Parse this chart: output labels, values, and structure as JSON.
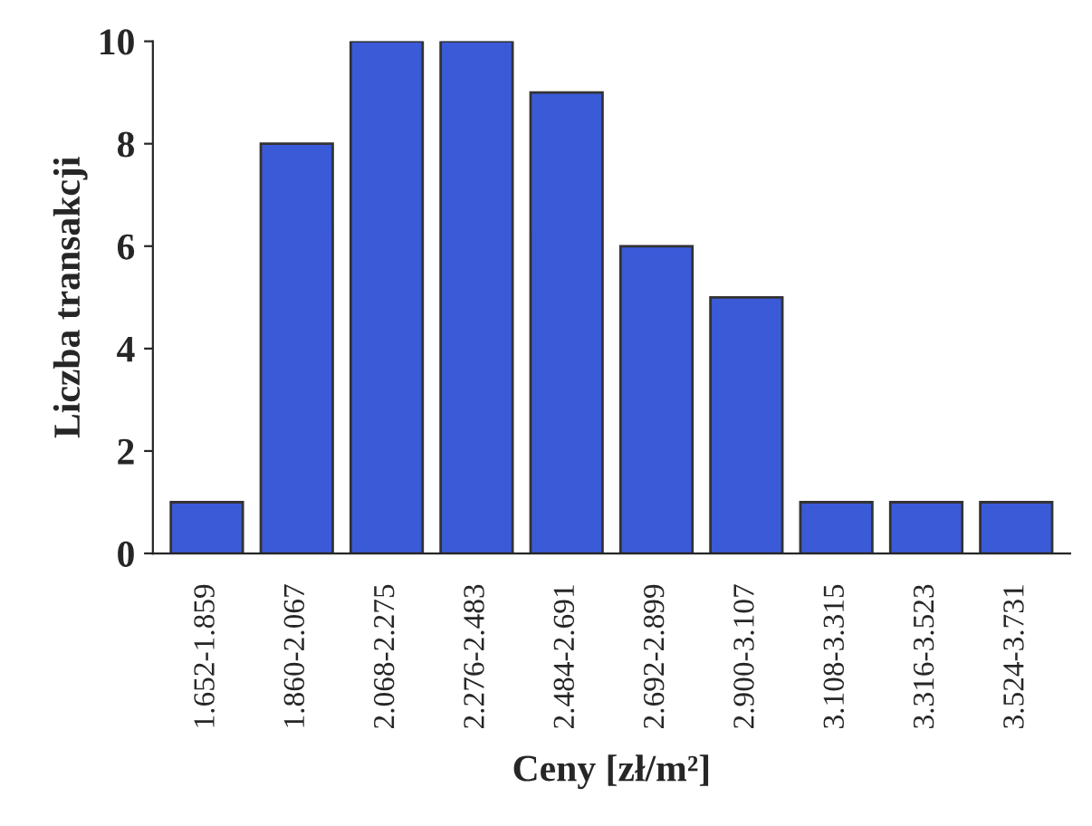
{
  "chart_data": {
    "type": "bar",
    "xlabel": "Ceny [zł/m²]",
    "ylabel": "Liczba transakcji",
    "categories": [
      "1.652-1.859",
      "1.860-2.067",
      "2.068-2.275",
      "2.276-2.483",
      "2.484-2.691",
      "2.692-2.899",
      "2.900-3.107",
      "3.108-3.315",
      "3.316-3.523",
      "3.524-3.731"
    ],
    "values": [
      1,
      8,
      10,
      10,
      9,
      6,
      5,
      1,
      1,
      1
    ],
    "color": "#3a5ad8",
    "ylim": [
      0,
      10
    ],
    "yticks": [
      0,
      2,
      4,
      6,
      8,
      10
    ],
    "grid": false
  }
}
